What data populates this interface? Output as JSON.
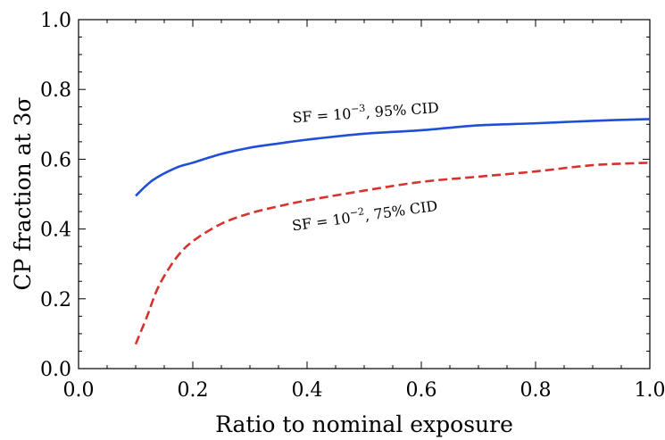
{
  "chart_data": {
    "type": "line",
    "xlabel": "Ratio to nominal exposure",
    "ylabel": "CP fraction at 3σ",
    "xlim": [
      0.0,
      1.0
    ],
    "ylim": [
      0.0,
      1.0
    ],
    "xticks": [
      "0.0",
      "0.2",
      "0.4",
      "0.6",
      "0.8",
      "1.0"
    ],
    "yticks": [
      "0.0",
      "0.2",
      "0.4",
      "0.6",
      "0.8",
      "1.0"
    ],
    "grid": false,
    "series": [
      {
        "name": "SF = 10^−3, 95% CID",
        "color": "#1f4fd6",
        "style": "solid",
        "x": [
          0.1,
          0.13,
          0.17,
          0.2,
          0.25,
          0.3,
          0.35,
          0.4,
          0.5,
          0.6,
          0.7,
          0.8,
          0.9,
          1.0
        ],
        "y": [
          0.495,
          0.54,
          0.575,
          0.59,
          0.615,
          0.633,
          0.645,
          0.656,
          0.673,
          0.683,
          0.697,
          0.703,
          0.71,
          0.715
        ]
      },
      {
        "name": "SF = 10^−2, 75% CID",
        "color": "#d6332f",
        "style": "dashed",
        "x": [
          0.1,
          0.12,
          0.14,
          0.17,
          0.2,
          0.25,
          0.3,
          0.35,
          0.4,
          0.5,
          0.6,
          0.7,
          0.8,
          0.9,
          1.0
        ],
        "y": [
          0.07,
          0.15,
          0.235,
          0.315,
          0.365,
          0.415,
          0.445,
          0.465,
          0.482,
          0.51,
          0.535,
          0.55,
          0.565,
          0.583,
          0.59
        ]
      }
    ],
    "annotations": [
      {
        "base": "SF = 10",
        "exp": "−3",
        "rest": ", 95% CID",
        "x": 0.375,
        "y": 0.705,
        "rotate": -4
      },
      {
        "base": "SF = 10",
        "exp": "−2",
        "rest": ", 75% CID",
        "x": 0.375,
        "y": 0.395,
        "rotate": -8
      }
    ]
  }
}
